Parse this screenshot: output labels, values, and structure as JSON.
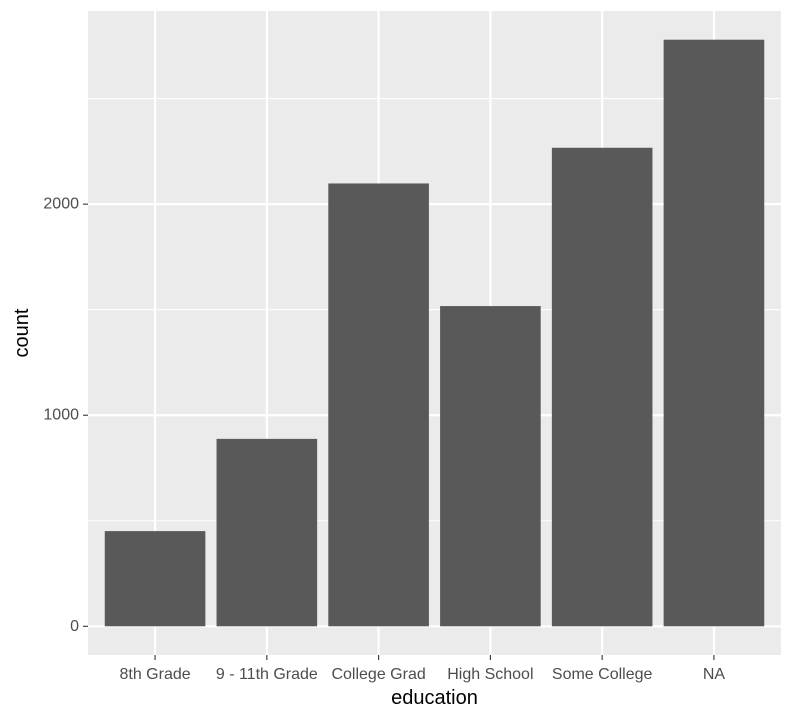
{
  "chart_data": {
    "type": "bar",
    "categories": [
      "8th Grade",
      "9 - 11th Grade",
      "College Grad",
      "High School",
      "Some College",
      "NA"
    ],
    "values": [
      451,
      888,
      2098,
      1517,
      2267,
      2779
    ],
    "xlabel": "education",
    "ylabel": "count",
    "ylim": [
      -136,
      2915
    ],
    "yticks": [
      0,
      1000,
      2000
    ],
    "ytick_labels": [
      "0",
      "1000",
      "2000"
    ],
    "grid": true,
    "legend": "none"
  },
  "colors": {
    "panel_background": "#ebebeb",
    "grid_major": "#ffffff",
    "bar_fill": "#595959",
    "tick_mark": "#333333",
    "tick_text": "#4d4d4d",
    "title_text": "#000000"
  }
}
